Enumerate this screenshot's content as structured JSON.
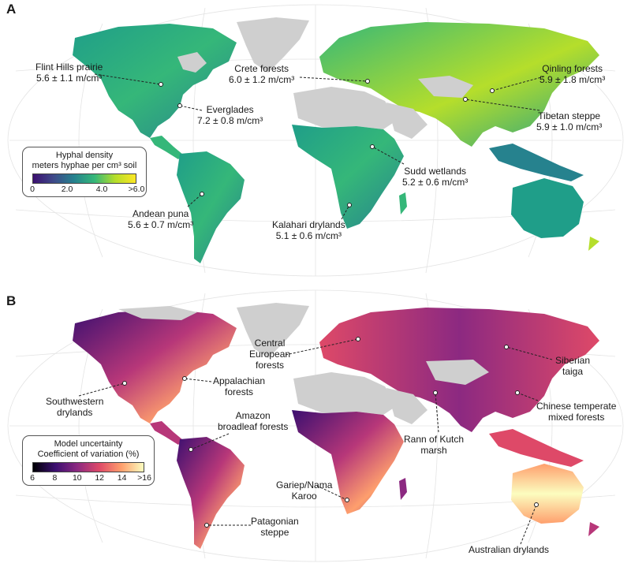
{
  "panel_a": {
    "letter": "A",
    "legend": {
      "title": "Hyphal density",
      "subtitle": "meters hyphae per cm³ soil",
      "ticks": [
        "0",
        "2.0",
        "4.0",
        ">6.0"
      ],
      "colors": [
        "#3b0f70",
        "#3e4a89",
        "#26828e",
        "#35b779",
        "#b5de2b",
        "#fde725"
      ]
    },
    "labels": [
      {
        "id": "flint",
        "name": "Flint Hills prairie",
        "value": "5.6 ± 1.1 m/cm³"
      },
      {
        "id": "crete",
        "name": "Crete forests",
        "value": "6.0 ± 1.2 m/cm³"
      },
      {
        "id": "qinling",
        "name": "Qinling forests",
        "value": "5.9 ± 1.8 m/cm³"
      },
      {
        "id": "everglades",
        "name": "Everglades",
        "value": "7.2 ± 0.8 m/cm³"
      },
      {
        "id": "tibetan",
        "name": "Tibetan steppe",
        "value": "5.9 ± 1.0 m/cm³"
      },
      {
        "id": "sudd",
        "name": "Sudd wetlands",
        "value": "5.2 ± 0.6 m/cm³"
      },
      {
        "id": "andean",
        "name": "Andean puna",
        "value": "5.6 ± 0.7 m/cm³"
      },
      {
        "id": "kalahari",
        "name": "Kalahari drylands",
        "value": "5.1 ± 0.6 m/cm³"
      }
    ]
  },
  "panel_b": {
    "letter": "B",
    "legend": {
      "title": "Model uncertainty",
      "subtitle": "Coefficient of variation (%)",
      "ticks": [
        "6",
        "8",
        "10",
        "12",
        "14",
        ">16"
      ],
      "colors": [
        "#000004",
        "#3b0f70",
        "#8c2981",
        "#de4968",
        "#fe9f6d",
        "#fcfdbf"
      ]
    },
    "labels": [
      {
        "id": "central-eu",
        "lines": [
          "Central",
          "European",
          "forests"
        ]
      },
      {
        "id": "siberian",
        "lines": [
          "Siberian",
          "taiga"
        ]
      },
      {
        "id": "appalachian",
        "lines": [
          "Appalachian",
          "forests"
        ]
      },
      {
        "id": "southwestern",
        "lines": [
          "Southwestern",
          "drylands"
        ]
      },
      {
        "id": "chinese",
        "lines": [
          "Chinese temperate",
          "mixed forests"
        ]
      },
      {
        "id": "amazon",
        "lines": [
          "Amazon",
          "broadleaf forests"
        ]
      },
      {
        "id": "rann",
        "lines": [
          "Rann of Kutch",
          "marsh"
        ]
      },
      {
        "id": "gariep",
        "lines": [
          "Gariep/Nama",
          "Karoo"
        ]
      },
      {
        "id": "patagonian",
        "lines": [
          "Patagonian",
          "steppe"
        ]
      },
      {
        "id": "australian",
        "lines": [
          "Australian drylands"
        ]
      }
    ]
  }
}
